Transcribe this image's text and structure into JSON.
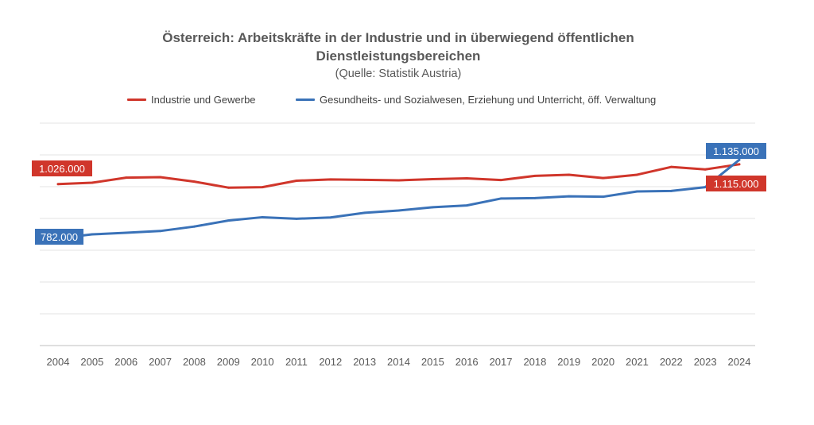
{
  "chart_data": {
    "type": "line",
    "title_line1": "Österreich: Arbeitskräfte in der Industrie und in überwiegend öffentlichen",
    "title_line2": "Dienstleistungsbereichen",
    "subtitle": "(Quelle: Statistik Austria)",
    "xlabel": "",
    "ylabel": "",
    "grid": true,
    "legend_position": "top",
    "ylim": [
      300000,
      1300000
    ],
    "x": [
      "2004",
      "2005",
      "2006",
      "2007",
      "2008",
      "2009",
      "2010",
      "2011",
      "2012",
      "2013",
      "2014",
      "2015",
      "2016",
      "2017",
      "2018",
      "2019",
      "2020",
      "2021",
      "2022",
      "2023",
      "2024"
    ],
    "series": [
      {
        "name": "Industrie und Gewerbe",
        "color": "#D0362B",
        "values": [
          1026000,
          1032000,
          1055000,
          1057000,
          1037000,
          1010000,
          1012000,
          1041000,
          1047000,
          1045000,
          1043000,
          1048000,
          1052000,
          1044000,
          1063000,
          1068000,
          1053000,
          1068000,
          1103000,
          1092000,
          1115000
        ],
        "first_label": "1.026.000",
        "last_label": "1.115.000"
      },
      {
        "name": "Gesundheits- und Sozialwesen, Erziehung und Unterricht, öff. Verwaltung",
        "color": "#3A72B8",
        "values": [
          782000,
          800000,
          807000,
          815000,
          835000,
          862000,
          877000,
          870000,
          876000,
          897000,
          907000,
          922000,
          930000,
          961000,
          963000,
          971000,
          969000,
          993000,
          995000,
          1012000,
          1135000
        ],
        "first_label": "782.000",
        "last_label": "1.135.000"
      }
    ]
  }
}
